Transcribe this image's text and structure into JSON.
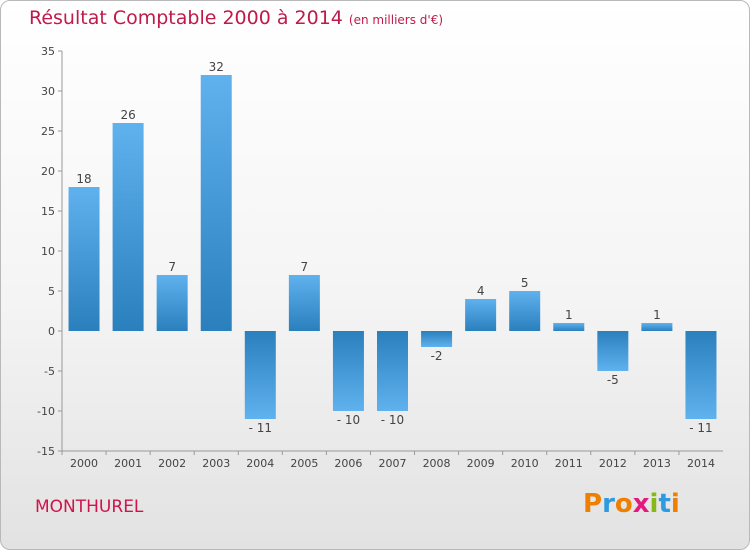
{
  "title": "Résultat Comptable 2000 à 2014",
  "subtitle": "(en milliers d'€)",
  "commune": "MONTHUREL",
  "logo_text": "Proxiti",
  "colors": {
    "bar_light": "#5fb2ee",
    "bar_dark": "#2a7fbd",
    "title": "#c01a4a"
  },
  "chart_data": {
    "type": "bar",
    "categories": [
      "2000",
      "2001",
      "2002",
      "2003",
      "2004",
      "2005",
      "2006",
      "2007",
      "2008",
      "2009",
      "2010",
      "2011",
      "2012",
      "2013",
      "2014"
    ],
    "values": [
      18,
      26,
      7,
      32,
      -11,
      7,
      -10,
      -10,
      -2,
      4,
      5,
      1,
      -5,
      1,
      -11
    ],
    "value_labels": [
      "18",
      "26",
      "7",
      "32",
      "- 11",
      "7",
      "- 10",
      "- 10",
      "-2",
      "4",
      "5",
      "1",
      "-5",
      "1",
      "- 11"
    ],
    "ylim": [
      -15,
      35
    ],
    "yticks": [
      35,
      30,
      25,
      20,
      15,
      10,
      5,
      0,
      -5,
      -10,
      -15
    ],
    "grid": false
  }
}
